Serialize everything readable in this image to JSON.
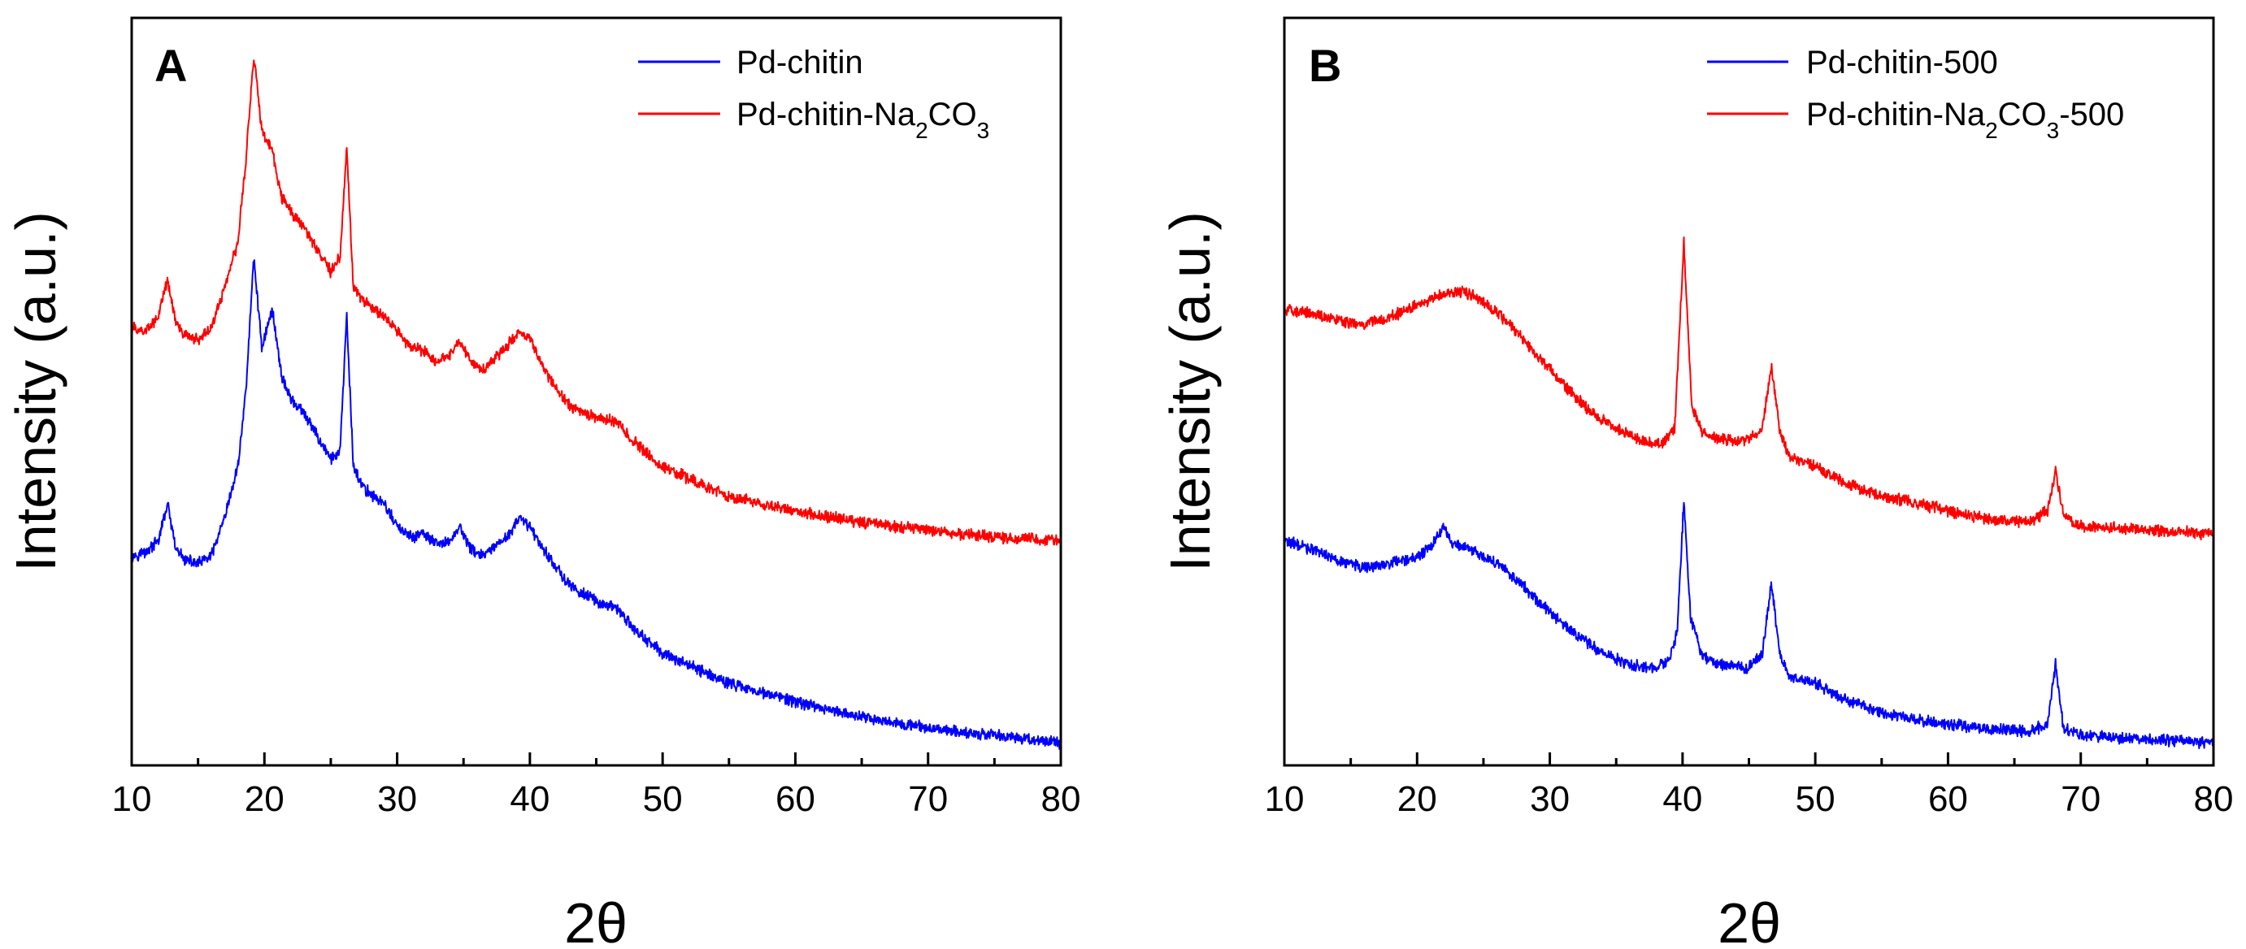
{
  "chart_data": [
    {
      "type": "line",
      "panel_label": "A",
      "xlabel": "2θ",
      "ylabel": "Intensity (a.u.)",
      "xlim": [
        10,
        80
      ],
      "ylim": [
        0,
        100
      ],
      "y_ticks_shown": false,
      "x_ticks": [
        "10",
        "20",
        "30",
        "40",
        "50",
        "60",
        "70",
        "80"
      ],
      "legend_position": "top-right",
      "series": [
        {
          "name": "Pd-chitin",
          "legend": {
            "base": "Pd-chitin"
          },
          "color": "#0000ff",
          "points": [
            [
              10,
              28
            ],
            [
              11,
              28.5
            ],
            [
              12,
              30
            ],
            [
              12.7,
              35
            ],
            [
              13.3,
              29
            ],
            [
              14,
              27.5
            ],
            [
              15,
              27
            ],
            [
              16,
              28
            ],
            [
              17,
              33
            ],
            [
              18,
              40
            ],
            [
              18.6,
              50
            ],
            [
              19.2,
              68
            ],
            [
              19.8,
              56
            ],
            [
              20.6,
              61
            ],
            [
              21.3,
              52
            ],
            [
              22,
              49
            ],
            [
              23,
              47
            ],
            [
              24,
              44
            ],
            [
              25,
              41
            ],
            [
              25.7,
              42
            ],
            [
              26.2,
              60
            ],
            [
              26.7,
              40
            ],
            [
              27.5,
              37
            ],
            [
              29,
              35
            ],
            [
              30,
              32
            ],
            [
              31,
              30.5
            ],
            [
              32,
              31
            ],
            [
              33,
              29.5
            ],
            [
              34,
              30
            ],
            [
              34.7,
              32
            ],
            [
              35.5,
              29
            ],
            [
              36.5,
              28
            ],
            [
              38,
              30
            ],
            [
              39.2,
              33
            ],
            [
              40,
              32
            ],
            [
              41,
              29
            ],
            [
              43,
              24
            ],
            [
              45,
              22
            ],
            [
              46.5,
              21
            ],
            [
              48,
              18
            ],
            [
              50,
              15
            ],
            [
              55,
              11
            ],
            [
              60,
              8.5
            ],
            [
              65,
              6.5
            ],
            [
              70,
              5
            ],
            [
              75,
              4
            ],
            [
              80,
              3
            ]
          ]
        },
        {
          "name": "Pd-chitin-Na2CO3",
          "legend": {
            "base": "Pd-chitin-Na",
            "sub1": "2",
            "mid": "CO",
            "sub2": "3"
          },
          "color": "#ff0000",
          "points": [
            [
              10,
              58.5
            ],
            [
              11,
              58
            ],
            [
              12,
              60
            ],
            [
              12.7,
              65
            ],
            [
              13.3,
              59.5
            ],
            [
              14,
              57.5
            ],
            [
              15,
              57
            ],
            [
              16,
              58.5
            ],
            [
              17,
              64
            ],
            [
              18,
              70
            ],
            [
              18.6,
              81
            ],
            [
              19.2,
              95
            ],
            [
              19.8,
              85
            ],
            [
              20.6,
              82
            ],
            [
              21.3,
              76
            ],
            [
              22,
              74
            ],
            [
              23,
              72
            ],
            [
              24,
              69
            ],
            [
              25,
              66
            ],
            [
              25.7,
              68
            ],
            [
              26.2,
              83
            ],
            [
              26.7,
              64
            ],
            [
              27.5,
              62
            ],
            [
              29,
              60
            ],
            [
              30,
              58
            ],
            [
              31,
              56
            ],
            [
              32,
              55.5
            ],
            [
              33,
              54
            ],
            [
              34,
              55
            ],
            [
              34.7,
              57
            ],
            [
              35.5,
              54
            ],
            [
              36.5,
              53
            ],
            [
              38,
              55.5
            ],
            [
              39.2,
              58
            ],
            [
              40,
              57
            ],
            [
              41,
              53
            ],
            [
              43,
              48
            ],
            [
              45,
              46.5
            ],
            [
              46.5,
              46
            ],
            [
              48,
              43
            ],
            [
              50,
              40
            ],
            [
              55,
              36
            ],
            [
              60,
              34
            ],
            [
              65,
              32.5
            ],
            [
              70,
              31.5
            ],
            [
              75,
              30.5
            ],
            [
              80,
              30
            ]
          ]
        }
      ]
    },
    {
      "type": "line",
      "panel_label": "B",
      "xlabel": "2θ",
      "ylabel": "Intensity (a.u.)",
      "xlim": [
        10,
        80
      ],
      "ylim": [
        0,
        100
      ],
      "y_ticks_shown": false,
      "x_ticks": [
        "10",
        "20",
        "30",
        "40",
        "50",
        "60",
        "70",
        "80"
      ],
      "legend_position": "top-right",
      "series": [
        {
          "name": "Pd-chitin-500",
          "legend": {
            "base": "Pd-chitin-500"
          },
          "color": "#0000ff",
          "points": [
            [
              10,
              30
            ],
            [
              12,
              29
            ],
            [
              14,
              27.5
            ],
            [
              16,
              26.5
            ],
            [
              18,
              27
            ],
            [
              20,
              28
            ],
            [
              21,
              29
            ],
            [
              22,
              32
            ],
            [
              22.6,
              29.5
            ],
            [
              24,
              29
            ],
            [
              26,
              27
            ],
            [
              28,
              24
            ],
            [
              30,
              20.5
            ],
            [
              32,
              17.5
            ],
            [
              34,
              15
            ],
            [
              36,
              13.5
            ],
            [
              38,
              13
            ],
            [
              39,
              14
            ],
            [
              39.6,
              18
            ],
            [
              40.1,
              35.5
            ],
            [
              40.6,
              20
            ],
            [
              41.5,
              14.5
            ],
            [
              43,
              13.5
            ],
            [
              45,
              13
            ],
            [
              46,
              15
            ],
            [
              46.7,
              24.5
            ],
            [
              47.3,
              15
            ],
            [
              48,
              12
            ],
            [
              50,
              11
            ],
            [
              52,
              9
            ],
            [
              55,
              7
            ],
            [
              58,
              6
            ],
            [
              60,
              5.5
            ],
            [
              63,
              5
            ],
            [
              66,
              4.5
            ],
            [
              67.5,
              5.5
            ],
            [
              68.1,
              13.5
            ],
            [
              68.7,
              5
            ],
            [
              70,
              4
            ],
            [
              75,
              3.5
            ],
            [
              80,
              3
            ]
          ]
        },
        {
          "name": "Pd-chitin-Na2CO3-500",
          "legend": {
            "base": "Pd-chitin-Na",
            "sub1": "2",
            "mid": "CO",
            "sub2": "3",
            "tail": "-500"
          },
          "color": "#ff0000",
          "points": [
            [
              10,
              61
            ],
            [
              12,
              60.5
            ],
            [
              14,
              59.5
            ],
            [
              16,
              59
            ],
            [
              18,
              60
            ],
            [
              20,
              61.5
            ],
            [
              22,
              63
            ],
            [
              23.5,
              63.5
            ],
            [
              25,
              62
            ],
            [
              27,
              59
            ],
            [
              29,
              55
            ],
            [
              31,
              51
            ],
            [
              33,
              47.5
            ],
            [
              35,
              45
            ],
            [
              37,
              43.5
            ],
            [
              38.5,
              43
            ],
            [
              39.4,
              45
            ],
            [
              40.1,
              70
            ],
            [
              40.7,
              48
            ],
            [
              41.5,
              44.5
            ],
            [
              43,
              43.5
            ],
            [
              45,
              43.5
            ],
            [
              46,
              45
            ],
            [
              46.7,
              53.5
            ],
            [
              47.3,
              45
            ],
            [
              48,
              41.5
            ],
            [
              50,
              40
            ],
            [
              52,
              38
            ],
            [
              55,
              36
            ],
            [
              58,
              35
            ],
            [
              60,
              34
            ],
            [
              63,
              33
            ],
            [
              66,
              32.5
            ],
            [
              67.5,
              34
            ],
            [
              68.1,
              39.5
            ],
            [
              68.7,
              33.5
            ],
            [
              70,
              32
            ],
            [
              75,
              31.5
            ],
            [
              80,
              31
            ]
          ]
        }
      ]
    }
  ]
}
